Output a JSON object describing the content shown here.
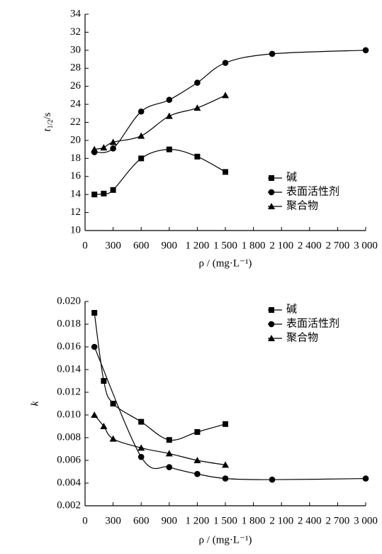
{
  "chart_data": [
    {
      "type": "line",
      "ylabel": "t",
      "ylabel_sub": "1/2",
      "ylabel_unit": "/s",
      "xlabel": "ρ / (mg·L⁻¹)",
      "xlim": [
        0,
        3000
      ],
      "xticks": [
        0,
        300,
        600,
        900,
        {
          "value": 1200,
          "label": "1 200"
        },
        {
          "value": 1500,
          "label": "1 500"
        },
        {
          "value": 1800,
          "label": "1 800"
        },
        {
          "value": 2100,
          "label": "2 100"
        },
        {
          "value": 2400,
          "label": "2 400"
        },
        {
          "value": 2700,
          "label": "2 700"
        },
        {
          "value": 3000,
          "label": "3 000"
        }
      ],
      "ylim": [
        10,
        34
      ],
      "yticks": [
        10,
        12,
        14,
        16,
        18,
        20,
        22,
        24,
        26,
        28,
        30,
        32,
        34
      ],
      "legend": "right",
      "series": [
        {
          "name": "碱",
          "marker": "square",
          "color": "#000000",
          "x": [
            100,
            200,
            300,
            600,
            900,
            1200,
            1500
          ],
          "values": [
            14.0,
            14.1,
            14.5,
            18.0,
            19.0,
            18.2,
            16.5
          ]
        },
        {
          "name": "表面活性剂",
          "marker": "circle",
          "color": "#000000",
          "x": [
            100,
            300,
            600,
            900,
            1200,
            1500,
            2000,
            3000
          ],
          "values": [
            18.7,
            19.1,
            23.2,
            24.5,
            26.4,
            28.6,
            29.6,
            30.0
          ]
        },
        {
          "name": "聚合物",
          "marker": "triangle",
          "color": "#000000",
          "x": [
            100,
            200,
            300,
            600,
            900,
            1200,
            1500
          ],
          "values": [
            19.0,
            19.2,
            19.8,
            20.5,
            22.7,
            23.6,
            25.0
          ]
        }
      ]
    },
    {
      "type": "line",
      "ylabel": "k",
      "xlabel": "ρ / (mg·L⁻¹)",
      "xlim": [
        0,
        3000
      ],
      "xticks": [
        0,
        300,
        600,
        900,
        {
          "value": 1200,
          "label": "1 200"
        },
        {
          "value": 1500,
          "label": "1 500"
        },
        {
          "value": 1800,
          "label": "1 800"
        },
        {
          "value": 2100,
          "label": "2 100"
        },
        {
          "value": 2400,
          "label": "2 400"
        },
        {
          "value": 2700,
          "label": "2 700"
        },
        {
          "value": 3000,
          "label": "3 000"
        }
      ],
      "ylim": [
        0.002,
        0.02
      ],
      "yticks": [
        0.002,
        0.004,
        0.006,
        0.008,
        {
          "value": 0.01,
          "label": "0.010"
        },
        0.012,
        0.014,
        0.016,
        0.018,
        {
          "value": 0.02,
          "label": "0.020"
        }
      ],
      "legend": "right",
      "series": [
        {
          "name": "碱",
          "marker": "square",
          "color": "#000000",
          "x": [
            100,
            200,
            300,
            600,
            900,
            1200,
            1500
          ],
          "values": [
            0.019,
            0.013,
            0.011,
            0.0094,
            0.0078,
            0.0085,
            0.0092
          ]
        },
        {
          "name": "表面活性剂",
          "marker": "circle",
          "color": "#000000",
          "x": [
            100,
            600,
            900,
            1200,
            1500,
            2000,
            3000
          ],
          "values": [
            0.016,
            0.0063,
            0.0054,
            0.0048,
            0.0044,
            0.0043,
            0.0044
          ]
        },
        {
          "name": "聚合物",
          "marker": "triangle",
          "color": "#000000",
          "x": [
            100,
            200,
            300,
            600,
            900,
            1200,
            1500
          ],
          "values": [
            0.01,
            0.009,
            0.0079,
            0.0071,
            0.0066,
            0.006,
            0.0056
          ]
        }
      ]
    }
  ]
}
